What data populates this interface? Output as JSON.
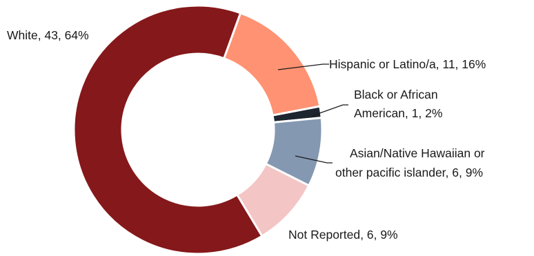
{
  "chart_data": {
    "type": "pie",
    "style": "donut",
    "title": "",
    "categories": [
      "Hispanic or Latino/a",
      "Black or African American",
      "Asian/Native Hawaiian or other pacific islander",
      "Not Reported",
      "White"
    ],
    "values": [
      11,
      1,
      6,
      6,
      43
    ],
    "percents": [
      16,
      2,
      9,
      9,
      64
    ],
    "colors": [
      "#FF9273",
      "#1C2530",
      "#8498B2",
      "#F4C5C5",
      "#85181A"
    ],
    "labels": [
      [
        "Hispanic or Latino/a, 11, 16%"
      ],
      [
        "Black or African",
        "American, 1, 2%"
      ],
      [
        "Asian/Native Hawaiian or",
        "other pacific islander, 6, 9%"
      ],
      [
        "Not Reported, 6, 9%"
      ],
      [
        "White, 43, 64%"
      ]
    ]
  }
}
